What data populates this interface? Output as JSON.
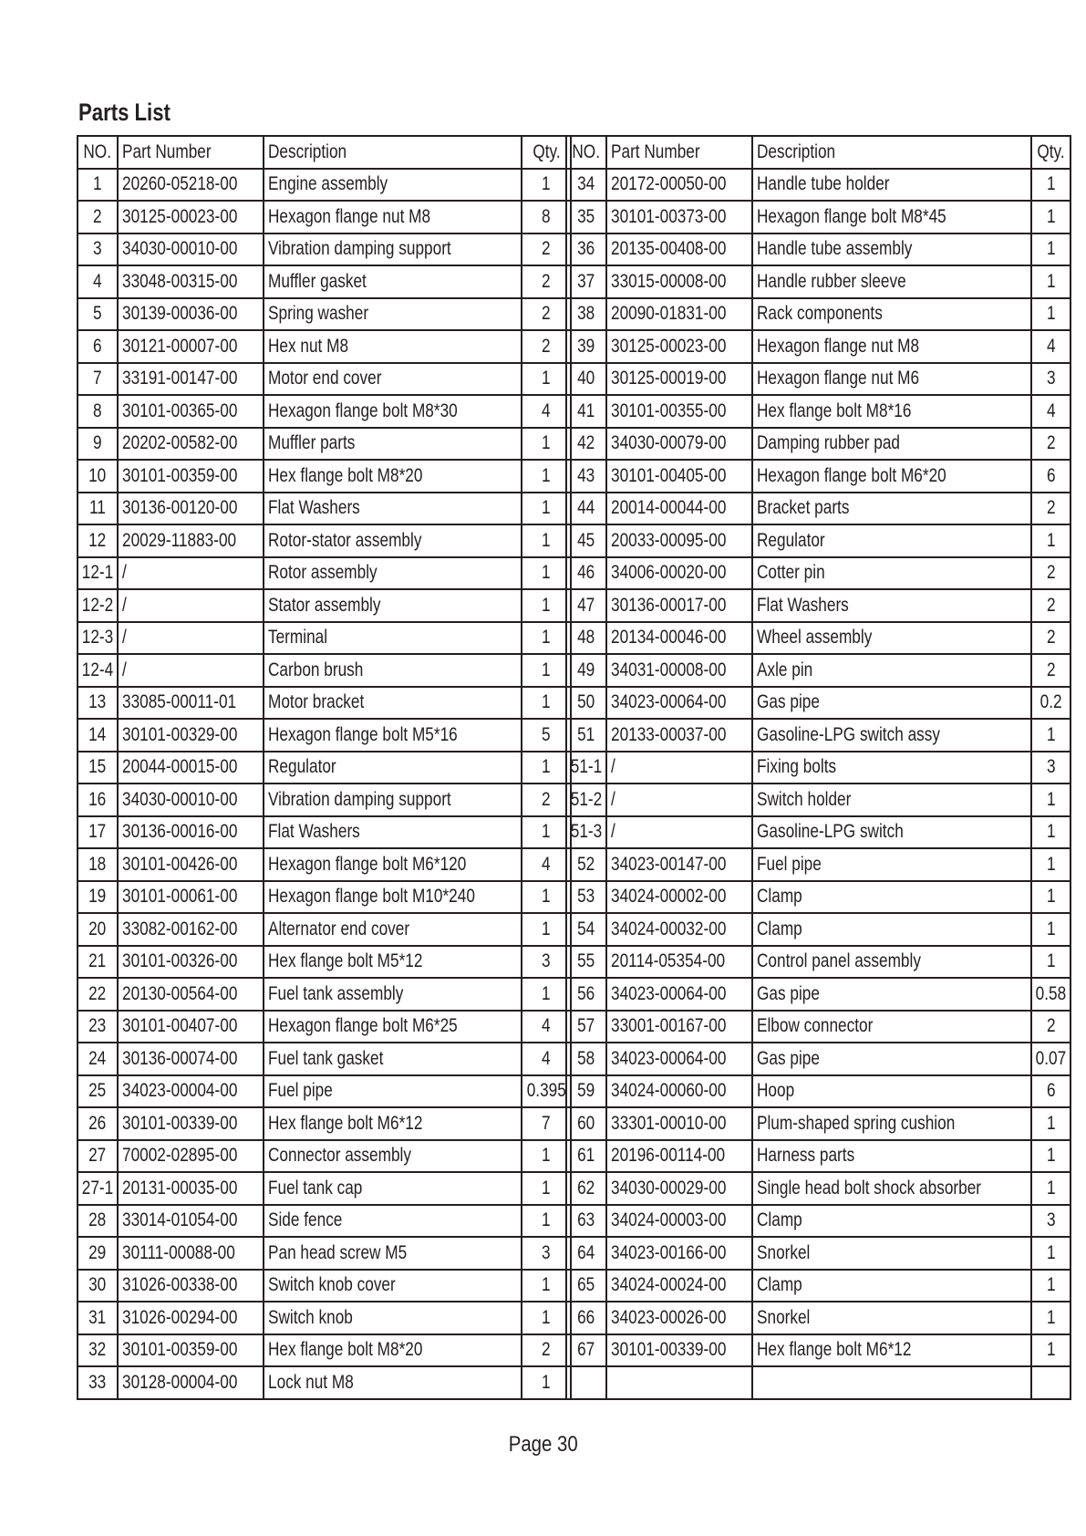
{
  "title": "Parts List",
  "headers": [
    "NO.",
    "Part Number",
    "Description",
    "Qty."
  ],
  "left_rows": [
    [
      "1",
      "20260-05218-00",
      "Engine assembly",
      "1"
    ],
    [
      "2",
      "30125-00023-00",
      "Hexagon flange nut M8",
      "8"
    ],
    [
      "3",
      "34030-00010-00",
      "Vibration damping support",
      "2"
    ],
    [
      "4",
      "33048-00315-00",
      "Muffler gasket",
      "2"
    ],
    [
      "5",
      "30139-00036-00",
      "Spring washer",
      "2"
    ],
    [
      "6",
      "30121-00007-00",
      "Hex nut M8",
      "2"
    ],
    [
      "7",
      "33191-00147-00",
      "Motor end cover",
      "1"
    ],
    [
      "8",
      "30101-00365-00",
      "Hexagon flange bolt M8*30",
      "4"
    ],
    [
      "9",
      "20202-00582-00",
      "Muffler parts",
      "1"
    ],
    [
      "10",
      "30101-00359-00",
      "Hex flange bolt M8*20",
      "1"
    ],
    [
      "11",
      "30136-00120-00",
      "Flat Washers",
      "1"
    ],
    [
      "12",
      "20029-11883-00",
      "Rotor-stator assembly",
      "1"
    ],
    [
      "12-1",
      "/",
      "Rotor assembly",
      "1"
    ],
    [
      "12-2",
      "/",
      "Stator assembly",
      "1"
    ],
    [
      "12-3",
      "/",
      "Terminal",
      "1"
    ],
    [
      "12-4",
      "/",
      "Carbon brush",
      "1"
    ],
    [
      "13",
      "33085-00011-01",
      "Motor bracket",
      "1"
    ],
    [
      "14",
      "30101-00329-00",
      "Hexagon flange bolt M5*16",
      "5"
    ],
    [
      "15",
      "20044-00015-00",
      "Regulator",
      "1"
    ],
    [
      "16",
      "34030-00010-00",
      "Vibration damping support",
      "2"
    ],
    [
      "17",
      "30136-00016-00",
      "Flat Washers",
      "1"
    ],
    [
      "18",
      "30101-00426-00",
      "Hexagon flange bolt M6*120",
      "4"
    ],
    [
      "19",
      "30101-00061-00",
      "Hexagon flange bolt M10*240",
      "1"
    ],
    [
      "20",
      "33082-00162-00",
      "Alternator end cover",
      "1"
    ],
    [
      "21",
      "30101-00326-00",
      "Hex flange bolt M5*12",
      "3"
    ],
    [
      "22",
      "20130-00564-00",
      "Fuel tank assembly",
      "1"
    ],
    [
      "23",
      "30101-00407-00",
      "Hexagon flange bolt M6*25",
      "4"
    ],
    [
      "24",
      "30136-00074-00",
      "Fuel tank gasket",
      "4"
    ],
    [
      "25",
      "34023-00004-00",
      "Fuel pipe",
      "0.395"
    ],
    [
      "26",
      "30101-00339-00",
      "Hex flange bolt M6*12",
      "7"
    ],
    [
      "27",
      "70002-02895-00",
      "Connector assembly",
      "1"
    ],
    [
      "27-1",
      "20131-00035-00",
      "Fuel tank cap",
      "1"
    ],
    [
      "28",
      "33014-01054-00",
      "Side fence",
      "1"
    ],
    [
      "29",
      "30111-00088-00",
      "Pan head screw M5",
      "3"
    ],
    [
      "30",
      "31026-00338-00",
      "Switch knob cover",
      "1"
    ],
    [
      "31",
      "31026-00294-00",
      "Switch knob",
      "1"
    ],
    [
      "32",
      "30101-00359-00",
      "Hex flange bolt M8*20",
      "2"
    ],
    [
      "33",
      "30128-00004-00",
      "Lock nut M8",
      "1"
    ]
  ],
  "right_rows": [
    [
      "34",
      "20172-00050-00",
      "Handle tube holder",
      "1"
    ],
    [
      "35",
      "30101-00373-00",
      "Hexagon flange bolt M8*45",
      "1"
    ],
    [
      "36",
      "20135-00408-00",
      "Handle tube assembly",
      "1"
    ],
    [
      "37",
      "33015-00008-00",
      "Handle rubber sleeve",
      "1"
    ],
    [
      "38",
      "20090-01831-00",
      "Rack components",
      "1"
    ],
    [
      "39",
      "30125-00023-00",
      "Hexagon flange nut M8",
      "4"
    ],
    [
      "40",
      "30125-00019-00",
      "Hexagon flange nut M6",
      "3"
    ],
    [
      "41",
      "30101-00355-00",
      "Hex flange bolt M8*16",
      "4"
    ],
    [
      "42",
      "34030-00079-00",
      "Damping rubber pad",
      "2"
    ],
    [
      "43",
      "30101-00405-00",
      "Hexagon flange bolt M6*20",
      "6"
    ],
    [
      "44",
      "20014-00044-00",
      "Bracket parts",
      "2"
    ],
    [
      "45",
      "20033-00095-00",
      "Regulator",
      "1"
    ],
    [
      "46",
      "34006-00020-00",
      "Cotter pin",
      "2"
    ],
    [
      "47",
      "30136-00017-00",
      "Flat Washers",
      "2"
    ],
    [
      "48",
      "20134-00046-00",
      "Wheel assembly",
      "2"
    ],
    [
      "49",
      "34031-00008-00",
      "Axle pin",
      "2"
    ],
    [
      "50",
      "34023-00064-00",
      "Gas pipe",
      "0.2"
    ],
    [
      "51",
      "20133-00037-00",
      "Gasoline-LPG switch assy",
      "1"
    ],
    [
      "51-1",
      "/",
      "Fixing bolts",
      "3"
    ],
    [
      "51-2",
      "/",
      "Switch holder",
      "1"
    ],
    [
      "51-3",
      "/",
      "Gasoline-LPG switch",
      "1"
    ],
    [
      "52",
      "34023-00147-00",
      "Fuel pipe",
      "1"
    ],
    [
      "53",
      "34024-00002-00",
      "Clamp",
      "1"
    ],
    [
      "54",
      "34024-00032-00",
      "Clamp",
      "1"
    ],
    [
      "55",
      "20114-05354-00",
      "Control panel assembly",
      "1"
    ],
    [
      "56",
      "34023-00064-00",
      "Gas pipe",
      "0.58"
    ],
    [
      "57",
      "33001-00167-00",
      "Elbow connector",
      "2"
    ],
    [
      "58",
      "34023-00064-00",
      "Gas pipe",
      "0.07"
    ],
    [
      "59",
      "34024-00060-00",
      "Hoop",
      "6"
    ],
    [
      "60",
      "33301-00010-00",
      "Plum-shaped spring cushion",
      "1"
    ],
    [
      "61",
      "20196-00114-00",
      "Harness parts",
      "1"
    ],
    [
      "62",
      "34030-00029-00",
      "Single head bolt shock absorber",
      "1"
    ],
    [
      "63",
      "34024-00003-00",
      "Clamp",
      "3"
    ],
    [
      "64",
      "34023-00166-00",
      "Snorkel",
      "1"
    ],
    [
      "65",
      "34024-00024-00",
      "Clamp",
      "1"
    ],
    [
      "66",
      "34023-00026-00",
      "Snorkel",
      "1"
    ],
    [
      "67",
      "30101-00339-00",
      "Hex flange bolt M6*12",
      "1"
    ],
    [
      "",
      "",
      "",
      ""
    ]
  ],
  "footer": "Page 30"
}
